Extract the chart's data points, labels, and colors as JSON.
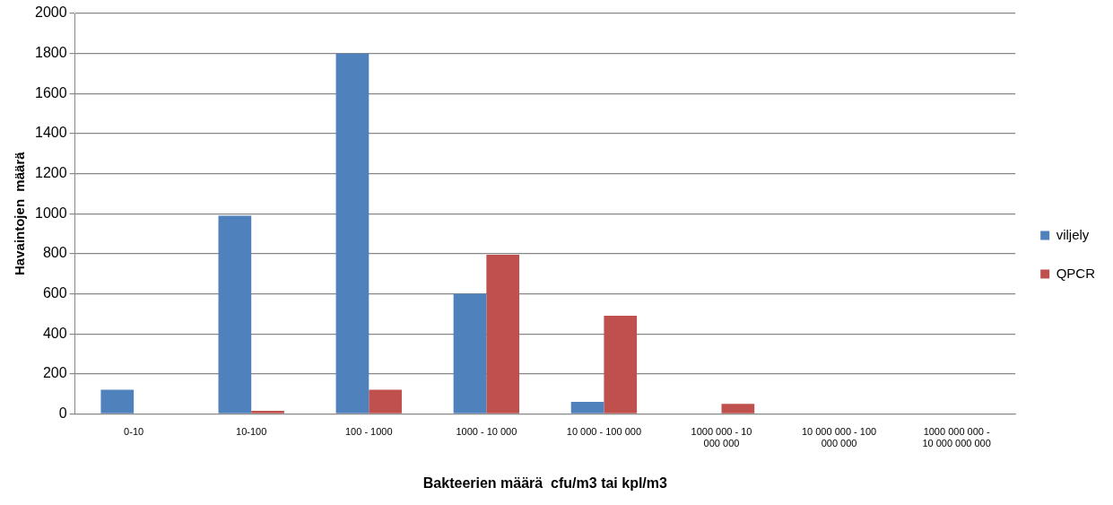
{
  "chart_data": {
    "type": "bar",
    "xlabel": "Bakteerien määrä  cfu/m3 tai kpl/m3",
    "ylabel": "Havaintojen  määrä",
    "categories": [
      "0-10",
      "10-100",
      "100 - 1000",
      "1000 - 10 000",
      "10 000 - 100 000",
      "1000 000 - 10 000 000",
      "10 000 000 - 100 000 000",
      "1000 000 000 - 10 000 000 000"
    ],
    "series": [
      {
        "name": "viljely",
        "color": "#4f81bd",
        "values": [
          120,
          990,
          1800,
          600,
          60,
          0,
          0,
          0
        ]
      },
      {
        "name": "QPCR",
        "color": "#c0504d",
        "values": [
          0,
          15,
          120,
          795,
          490,
          50,
          0,
          0
        ]
      }
    ],
    "ylim": [
      0,
      2000
    ],
    "yticks": [
      0,
      200,
      400,
      600,
      800,
      1000,
      1200,
      1400,
      1600,
      1800,
      2000
    ],
    "grid": "y",
    "legend": "right"
  }
}
